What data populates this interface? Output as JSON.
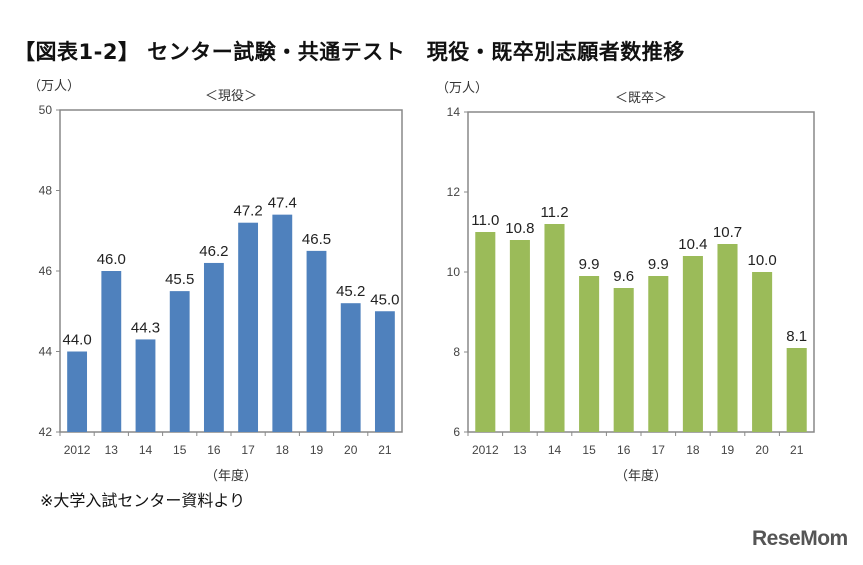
{
  "title": "【図表1-2】 センター試験・共通テスト　現役・既卒別志願者数推移",
  "note": "※大学入試センター資料より",
  "logo": "ReseMom",
  "chart_data": [
    {
      "type": "bar",
      "title": "＜現役＞",
      "ylabel": "（万人）",
      "xlabel": "（年度）",
      "categories": [
        "2012",
        "13",
        "14",
        "15",
        "16",
        "17",
        "18",
        "19",
        "20",
        "21"
      ],
      "values": [
        44.0,
        46.0,
        44.3,
        45.5,
        46.2,
        47.2,
        47.4,
        46.5,
        45.2,
        45.0
      ],
      "ylim": [
        42,
        50
      ],
      "yticks": [
        42,
        44,
        46,
        48,
        50
      ],
      "color": "#4f81bd",
      "grid": false
    },
    {
      "type": "bar",
      "title": "＜既卒＞",
      "ylabel": "（万人）",
      "xlabel": "（年度）",
      "categories": [
        "2012",
        "13",
        "14",
        "15",
        "16",
        "17",
        "18",
        "19",
        "20",
        "21"
      ],
      "values": [
        11.0,
        10.8,
        11.2,
        9.9,
        9.6,
        9.9,
        10.4,
        10.7,
        10.0,
        8.1
      ],
      "ylim": [
        6,
        14
      ],
      "yticks": [
        6,
        8,
        10,
        12,
        14
      ],
      "color": "#9bbb59",
      "grid": false
    }
  ]
}
